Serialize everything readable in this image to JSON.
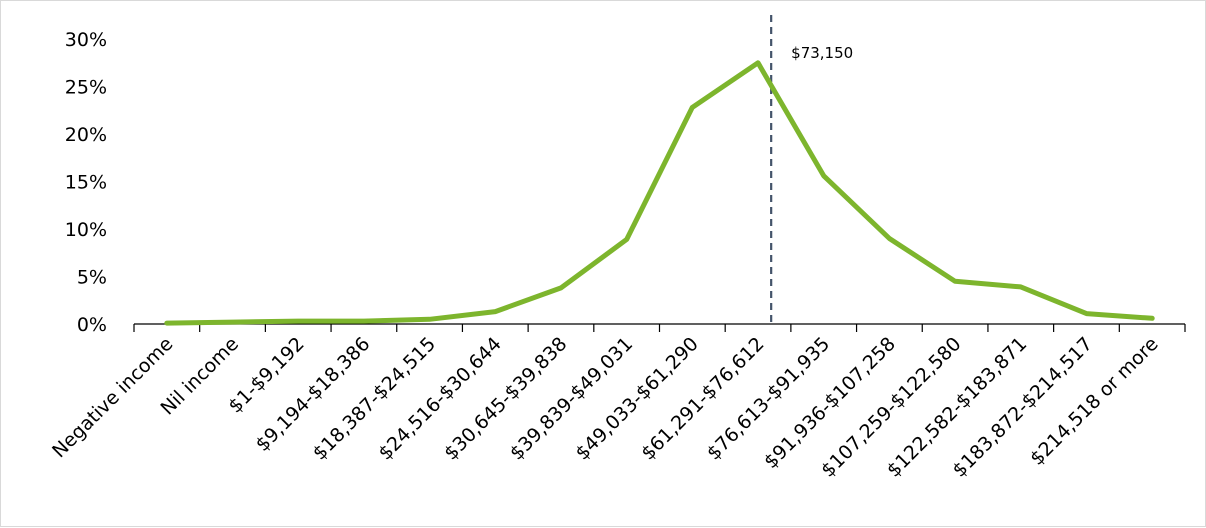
{
  "chart_data": {
    "type": "line",
    "title": "",
    "xlabel": "",
    "ylabel": "",
    "categories": [
      "Negative income",
      "Nil income",
      "$1-$9,192",
      "$9,194-$18,386",
      "$18,387-$24,515",
      "$24,516-$30,644",
      "$30,645-$39,838",
      "$39,839-$49,031",
      "$49,033-$61,290",
      "$61,291-$76,612",
      "$76,613-$91,935",
      "$91,936-$107,258",
      "$107,259-$122,580",
      "$122,582-$183,871",
      "$183,872-$214,517",
      "$214,518 or more"
    ],
    "series": [
      {
        "values": [
          0.1,
          0.2,
          0.3,
          0.3,
          0.5,
          1.3,
          3.8,
          8.9,
          22.8,
          27.5,
          15.6,
          9.0,
          4.5,
          3.9,
          1.1,
          0.6
        ]
      }
    ],
    "y_ticks": [
      "0%",
      "5%",
      "10%",
      "15%",
      "20%",
      "25%",
      "30%"
    ],
    "ylim": [
      0,
      30
    ],
    "grid": false,
    "legend": "none",
    "line_color": "#7db52d",
    "reference_line": {
      "label": "$73,150",
      "category_position": 9.7,
      "color": "#44546a",
      "style": "dashed"
    }
  }
}
